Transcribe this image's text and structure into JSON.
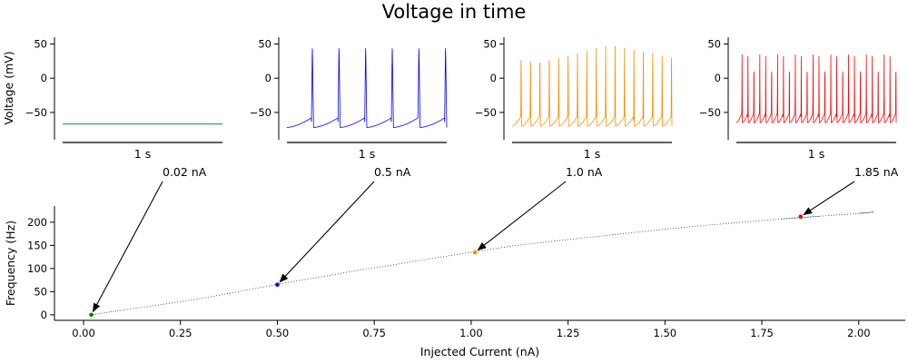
{
  "title": "Voltage in time",
  "chart_data": [
    {
      "type": "line",
      "panel": "voltage",
      "ylabel": "Voltage (mV)",
      "xlabel": "1 s",
      "ylim": [
        -90,
        60
      ],
      "yticks": [
        50,
        0,
        -50
      ],
      "series": [
        {
          "current_nA": 0.02,
          "color": "#008000",
          "spike_count": 0,
          "rest_mV": -67
        },
        {
          "current_nA": 0.5,
          "color": "#0000ff",
          "spike_count": 6,
          "spike_peak_mV": 49,
          "trough_mV": -72
        },
        {
          "current_nA": 1.0,
          "color": "#ff8c00",
          "spike_count": 17,
          "spike_peak_mV": 49,
          "trough_mV": -70
        },
        {
          "current_nA": 1.85,
          "color": "#ff0000",
          "spike_count": 27,
          "spike_peak_mV": 47,
          "trough_mV": -65
        }
      ]
    },
    {
      "type": "scatter",
      "panel": "f-i curve",
      "xlabel": "Injected Current (nA)",
      "ylabel": "Frequency (Hz)",
      "xlim": [
        -0.075,
        2.12
      ],
      "ylim": [
        -12,
        235
      ],
      "xticks": [
        0.0,
        0.25,
        0.5,
        0.75,
        1.0,
        1.25,
        1.5,
        1.75,
        2.0
      ],
      "xtick_labels": [
        "0.00",
        "0.25",
        "0.50",
        "0.75",
        "1.00",
        "1.25",
        "1.50",
        "1.75",
        "2.00"
      ],
      "yticks": [
        0,
        50,
        100,
        150,
        200
      ],
      "curve": {
        "x": [
          0.02,
          0.1,
          0.2,
          0.3,
          0.4,
          0.5,
          0.6,
          0.7,
          0.8,
          0.9,
          1.0,
          1.1,
          1.2,
          1.3,
          1.4,
          1.5,
          1.6,
          1.7,
          1.8,
          1.85,
          1.9,
          2.0,
          2.04
        ],
        "y": [
          0,
          10,
          22,
          35,
          50,
          66,
          80,
          95,
          108,
          122,
          135,
          148,
          158,
          167,
          176,
          185,
          193,
          200,
          207,
          210,
          213,
          219,
          222
        ]
      },
      "highlights": [
        {
          "x": 0.02,
          "y": 0,
          "color": "#008000",
          "label": "0.02 nA"
        },
        {
          "x": 0.5,
          "y": 65,
          "color": "#0000ff",
          "label": "0.5 nA"
        },
        {
          "x": 1.01,
          "y": 135,
          "color": "#ff8c00",
          "label": "1.0 nA"
        },
        {
          "x": 1.85,
          "y": 212,
          "color": "#ff0000",
          "label": "1.85 nA"
        }
      ]
    }
  ]
}
